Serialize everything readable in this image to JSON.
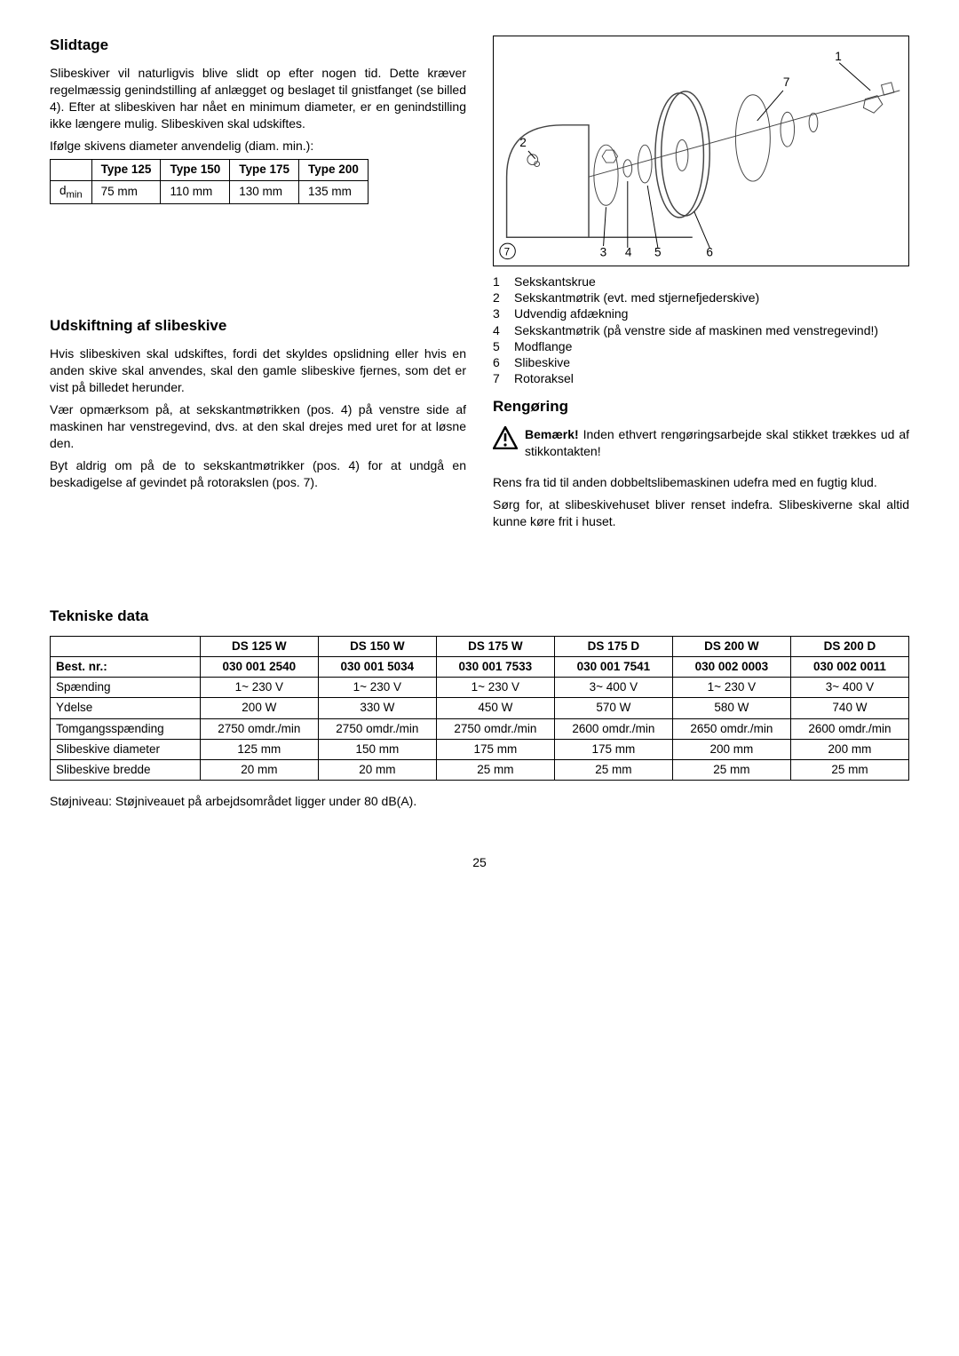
{
  "left": {
    "slidtage": {
      "title": "Slidtage",
      "para": "Slibeskiver vil naturligvis blive slidt op efter nogen tid. Dette kræver regelmæssig genindstilling af anlægget og beslaget til gnistfanget (se billed 4). Efter at slibeskiven har nået en minimum diameter, er en genindstilling ikke længere mulig. Slibeskiven skal udskiftes.",
      "para2": "Ifølge skivens diameter anvendelig (diam. min.):",
      "table": {
        "row_label": "d",
        "row_sub": "min",
        "headers": [
          "Type 125",
          "Type 150",
          "Type 175",
          "Type 200"
        ],
        "cells": [
          "75 mm",
          "110 mm",
          "130 mm",
          "135 mm"
        ]
      }
    },
    "udskift": {
      "title": "Udskiftning af slibeskive",
      "p1": "Hvis slibeskiven skal udskiftes, fordi det skyldes opslidning eller hvis en anden skive skal anvendes, skal den gamle slibeskive fjernes, som det er vist på billedet herunder.",
      "p2": "Vær opmærksom på, at sekskantmøtrikken (pos. 4) på venstre side af maskinen har venstregevind, dvs. at den skal drejes med uret for at løsne den.",
      "p3": "Byt aldrig om på de to sekskantmøtrikker (pos. 4) for at undgå en beskadigelse af gevindet på rotorakslen (pos. 7)."
    }
  },
  "right": {
    "diagram_labels": [
      "1",
      "2",
      "3",
      "4",
      "5",
      "6",
      "7"
    ],
    "diagram_corner": "7",
    "legend": [
      {
        "n": "1",
        "t": "Sekskantskrue"
      },
      {
        "n": "2",
        "t": "Sekskantmøtrik (evt. med stjernefjederskive)"
      },
      {
        "n": "3",
        "t": "Udvendig afdækning"
      },
      {
        "n": "4",
        "t": "Sekskantmøtrik (på venstre side af maskinen med venstregevind!)"
      },
      {
        "n": "5",
        "t": "Modflange"
      },
      {
        "n": "6",
        "t": "Slibeskive"
      },
      {
        "n": "7",
        "t": "Rotoraksel"
      }
    ],
    "reng": {
      "title": "Rengøring",
      "warn_bold": "Bemærk!",
      "warn_rest": " Inden ethvert rengøringsarbejde skal stikket trækkes ud af stikkontakten!",
      "p1": "Rens fra tid til anden dobbeltslibemaskinen udefra med en fugtig klud.",
      "p2": "Sørg for, at slibeskivehuset bliver renset indefra. Slibeskiverne skal altid kunne køre frit i huset."
    }
  },
  "tech": {
    "title": "Tekniske data",
    "cols": [
      "",
      "DS 125 W",
      "DS 150 W",
      "DS 175 W",
      "DS 175 D",
      "DS 200 W",
      "DS 200 D"
    ],
    "rows": [
      {
        "label": "Best. nr.:",
        "bold": true,
        "cells": [
          "030 001 2540",
          "030 001 5034",
          "030 001 7533",
          "030 001 7541",
          "030 002 0003",
          "030 002 0011"
        ]
      },
      {
        "label": "Spænding",
        "cells": [
          "1~ 230 V",
          "1~ 230 V",
          "1~ 230 V",
          "3~ 400 V",
          "1~ 230 V",
          "3~ 400 V"
        ]
      },
      {
        "label": "Ydelse",
        "cells": [
          "200 W",
          "330 W",
          "450 W",
          "570 W",
          "580 W",
          "740  W"
        ]
      },
      {
        "label": "Tomgangsspænding",
        "cells": [
          "2750 omdr./min",
          "2750 omdr./min",
          "2750 omdr./min",
          "2600 omdr./min",
          "2650 omdr./min",
          "2600 omdr./min"
        ]
      },
      {
        "label": "Slibeskive diameter",
        "cells": [
          "125 mm",
          "150 mm",
          "175 mm",
          "175 mm",
          "200 mm",
          "200 mm"
        ]
      },
      {
        "label": "Slibeskive bredde",
        "cells": [
          "20 mm",
          "20 mm",
          "25 mm",
          "25 mm",
          "25 mm",
          "25 mm"
        ]
      }
    ],
    "footer": "Støjniveau: Støjniveauet på arbejdsområdet ligger under 80 dB(A)."
  },
  "page_number": "25"
}
